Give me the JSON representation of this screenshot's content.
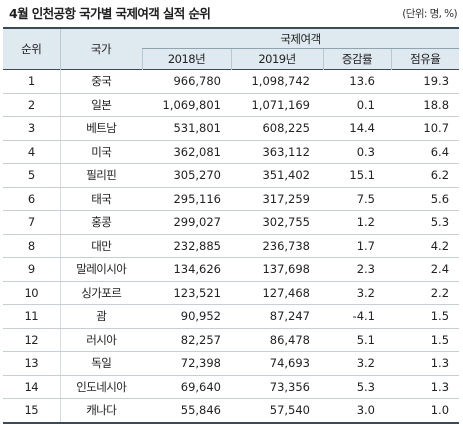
{
  "title": "4월 인천공항 국가별 국제여객 실적 순위",
  "unit": "(단위: 명, %)",
  "header": {
    "rank": "순위",
    "country": "국가",
    "group": "국제여객",
    "y2018": "2018년",
    "y2019": "2019년",
    "growth": "증감률",
    "share": "점유율"
  },
  "rows": [
    {
      "rank": "1",
      "country": "중국",
      "y2018": "966,780",
      "y2019": "1,098,742",
      "growth": "13.6",
      "share": "19.3"
    },
    {
      "rank": "2",
      "country": "일본",
      "y2018": "1,069,801",
      "y2019": "1,071,169",
      "growth": "0.1",
      "share": "18.8"
    },
    {
      "rank": "3",
      "country": "베트남",
      "y2018": "531,801",
      "y2019": "608,225",
      "growth": "14.4",
      "share": "10.7"
    },
    {
      "rank": "4",
      "country": "미국",
      "y2018": "362,081",
      "y2019": "363,112",
      "growth": "0.3",
      "share": "6.4"
    },
    {
      "rank": "5",
      "country": "필리핀",
      "y2018": "305,270",
      "y2019": "351,402",
      "growth": "15.1",
      "share": "6.2"
    },
    {
      "rank": "6",
      "country": "태국",
      "y2018": "295,116",
      "y2019": "317,259",
      "growth": "7.5",
      "share": "5.6"
    },
    {
      "rank": "7",
      "country": "홍콩",
      "y2018": "299,027",
      "y2019": "302,755",
      "growth": "1.2",
      "share": "5.3"
    },
    {
      "rank": "8",
      "country": "대만",
      "y2018": "232,885",
      "y2019": "236,738",
      "growth": "1.7",
      "share": "4.2"
    },
    {
      "rank": "9",
      "country": "말레이시아",
      "y2018": "134,626",
      "y2019": "137,698",
      "growth": "2.3",
      "share": "2.4"
    },
    {
      "rank": "10",
      "country": "싱가포르",
      "y2018": "123,521",
      "y2019": "127,468",
      "growth": "3.2",
      "share": "2.2"
    },
    {
      "rank": "11",
      "country": "괌",
      "y2018": "90,952",
      "y2019": "87,247",
      "growth": "-4.1",
      "share": "1.5"
    },
    {
      "rank": "12",
      "country": "러시아",
      "y2018": "82,257",
      "y2019": "86,478",
      "growth": "5.1",
      "share": "1.5"
    },
    {
      "rank": "13",
      "country": "독일",
      "y2018": "72,398",
      "y2019": "74,693",
      "growth": "3.2",
      "share": "1.3"
    },
    {
      "rank": "14",
      "country": "인도네시아",
      "y2018": "69,640",
      "y2019": "73,356",
      "growth": "5.3",
      "share": "1.3"
    },
    {
      "rank": "15",
      "country": "캐나다",
      "y2018": "55,846",
      "y2019": "57,540",
      "growth": "3.0",
      "share": "1.0"
    }
  ]
}
